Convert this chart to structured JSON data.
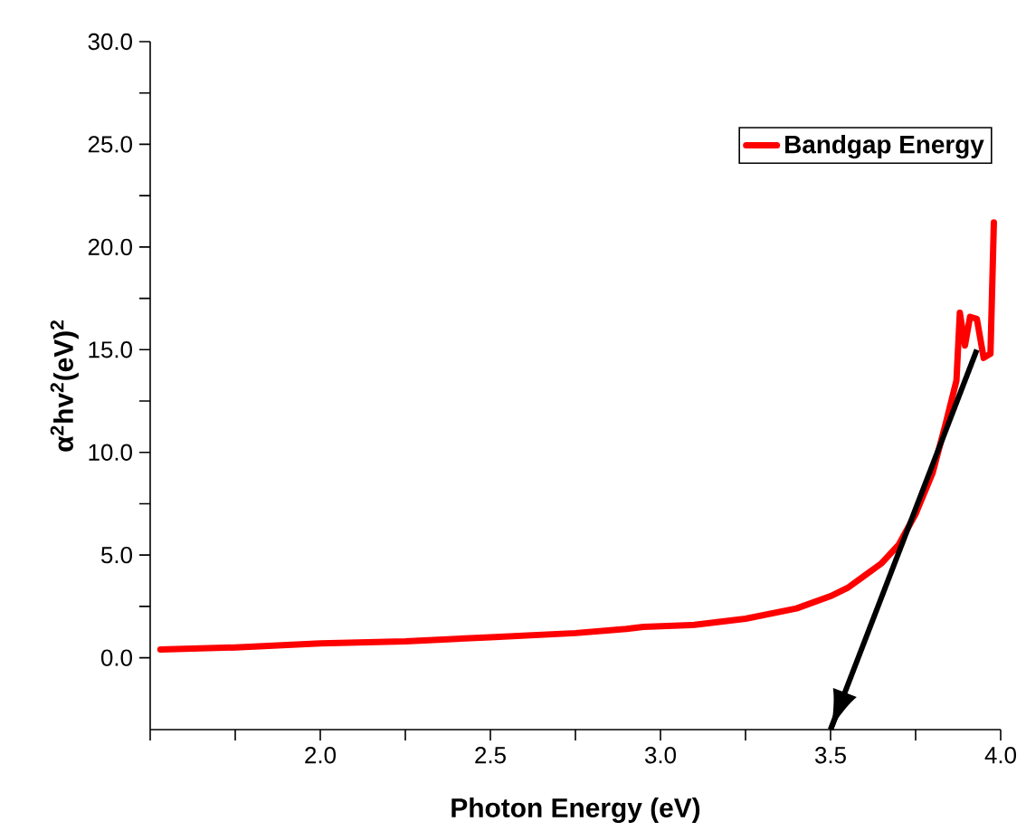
{
  "chart_data": {
    "type": "line",
    "xlabel": "Photon Energy (eV)",
    "ylabel": "α$^{2}$hv$^{2}$(eV)$^{2}$",
    "xlim": [
      1.5,
      4.0
    ],
    "ylim": [
      -3.5,
      30
    ],
    "xticks": [
      {
        "value": 1.5,
        "label": null
      },
      {
        "value": 1.75,
        "label": null
      },
      {
        "value": 2.0,
        "label": "2.0"
      },
      {
        "value": 2.25,
        "label": null
      },
      {
        "value": 2.5,
        "label": "2.5"
      },
      {
        "value": 2.75,
        "label": null
      },
      {
        "value": 3.0,
        "label": "3.0"
      },
      {
        "value": 3.25,
        "label": null
      },
      {
        "value": 3.5,
        "label": "3.5"
      },
      {
        "value": 3.75,
        "label": null
      },
      {
        "value": 4.0,
        "label": "4.0"
      }
    ],
    "yticks": [
      {
        "value": 0,
        "label": "0.0"
      },
      {
        "value": 2.5,
        "label": null
      },
      {
        "value": 5,
        "label": "5.0"
      },
      {
        "value": 7.5,
        "label": null
      },
      {
        "value": 10,
        "label": "10.0"
      },
      {
        "value": 12.5,
        "label": null
      },
      {
        "value": 15,
        "label": "15.0"
      },
      {
        "value": 17.5,
        "label": null
      },
      {
        "value": 20,
        "label": "20.0"
      },
      {
        "value": 22.5,
        "label": null
      },
      {
        "value": 25,
        "label": "25.0"
      },
      {
        "value": 27.5,
        "label": null
      },
      {
        "value": 30,
        "label": "30.0"
      }
    ],
    "grid": false,
    "legend": "top right",
    "marker": "none",
    "line_style": "solid",
    "series": [
      {
        "name": "Bandgap Energy",
        "color": "#ff0000",
        "x": [
          1.53,
          1.75,
          2.0,
          2.25,
          2.5,
          2.75,
          2.9,
          2.95,
          3.1,
          3.25,
          3.4,
          3.5,
          3.55,
          3.6,
          3.65,
          3.7,
          3.75,
          3.8,
          3.84,
          3.87,
          3.88,
          3.895,
          3.91,
          3.93,
          3.95,
          3.97,
          3.98
        ],
        "values": [
          0.4,
          0.5,
          0.7,
          0.8,
          1.0,
          1.2,
          1.4,
          1.5,
          1.6,
          1.9,
          2.4,
          3.0,
          3.4,
          4.0,
          4.6,
          5.5,
          7.0,
          9.0,
          11.5,
          13.5,
          16.8,
          15.2,
          16.6,
          16.5,
          14.6,
          14.8,
          21.2
        ]
      },
      {
        "type": "line",
        "color": "#000000",
        "x": [
          3.93,
          3.5
        ],
        "values": [
          15.0,
          -3.5
        ]
      }
    ]
  }
}
